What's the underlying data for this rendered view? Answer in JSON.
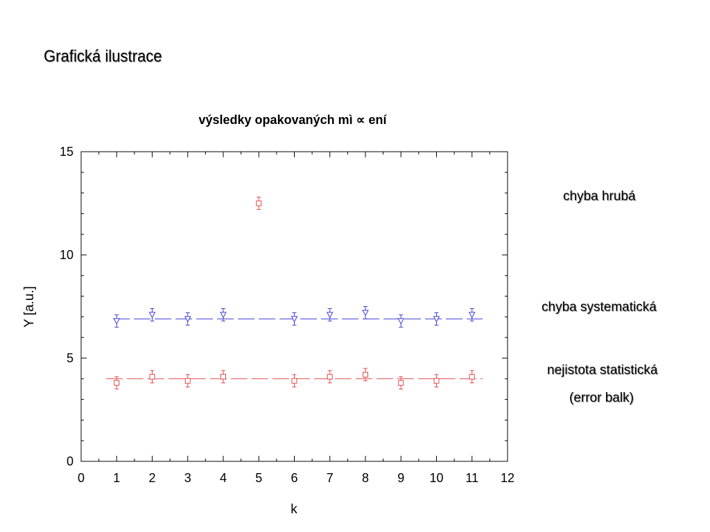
{
  "slide": {
    "title": "Grafická ilustrace",
    "annotations": {
      "gross_error": "chyba hrubá",
      "systematic_error": "chyba systematická",
      "statistical_uncertainty": "nejistota statistická",
      "error_bars": "(error balk)"
    }
  },
  "chart_data": {
    "type": "scatter",
    "title": "výsledky opakovaných mì ∝ ení",
    "xlabel": "k",
    "ylabel": "Y [a.u.]",
    "xlim": [
      0,
      12
    ],
    "ylim": [
      0,
      15
    ],
    "xticks": [
      0,
      1,
      2,
      3,
      4,
      5,
      6,
      7,
      8,
      9,
      10,
      11,
      12
    ],
    "yticks": [
      0,
      5,
      10,
      15
    ],
    "grid": false,
    "series": [
      {
        "marker": "triangle-down",
        "color": "#3f3fd6",
        "x": [
          1,
          2,
          3,
          4,
          6,
          7,
          8,
          9,
          10,
          11
        ],
        "y": [
          6.8,
          7.1,
          6.9,
          7.1,
          6.9,
          7.1,
          7.2,
          6.8,
          6.9,
          7.1
        ],
        "error": 0.3,
        "reference_line": {
          "y": 6.9,
          "x_range": [
            0.9,
            11.3
          ],
          "style": "dashed"
        }
      },
      {
        "marker": "square",
        "color": "#e04848",
        "x": [
          1,
          2,
          3,
          4,
          5,
          6,
          7,
          8,
          9,
          10,
          11
        ],
        "y": [
          3.8,
          4.1,
          3.9,
          4.1,
          12.5,
          3.9,
          4.1,
          4.2,
          3.8,
          3.9,
          4.1
        ],
        "error": 0.3,
        "reference_line": {
          "y": 4.0,
          "x_range": [
            0.7,
            11.3
          ],
          "style": "dashed"
        }
      }
    ]
  }
}
